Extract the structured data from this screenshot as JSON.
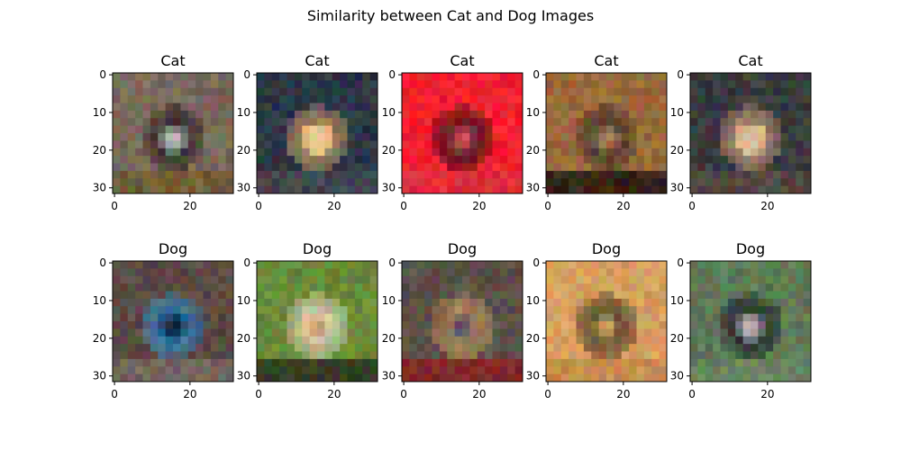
{
  "figure": {
    "suptitle": "Similarity between Cat and Dog Images"
  },
  "chart_data": [
    {
      "type": "image",
      "title": "Cat",
      "xlim": [
        -0.5,
        31.5
      ],
      "ylim": [
        31.5,
        -0.5
      ],
      "xticks": [
        0,
        20
      ],
      "yticks": [
        0,
        10,
        20,
        30
      ],
      "image_colors": {
        "background": "#7a6a5c",
        "accent": "#1e1c1c",
        "highlight": "#e8e0dc",
        "floor": "#6f5a2f"
      }
    },
    {
      "type": "image",
      "title": "Cat",
      "xlim": [
        -0.5,
        31.5
      ],
      "ylim": [
        31.5,
        -0.5
      ],
      "xticks": [
        0,
        20
      ],
      "yticks": [
        0,
        10,
        20,
        30
      ],
      "image_colors": {
        "background": "#2c3646",
        "accent": "#d9a56f",
        "highlight": "#f0d0a0",
        "floor": "#4a4a54"
      }
    },
    {
      "type": "image",
      "title": "Cat",
      "xlim": [
        -0.5,
        31.5
      ],
      "ylim": [
        31.5,
        -0.5
      ],
      "xticks": [
        0,
        20
      ],
      "yticks": [
        0,
        10,
        20,
        30
      ],
      "image_colors": {
        "background": "#f0202f",
        "accent": "#221616",
        "highlight": "#ff6070",
        "floor": "#e0303c"
      }
    },
    {
      "type": "image",
      "title": "Cat",
      "xlim": [
        -0.5,
        31.5
      ],
      "ylim": [
        31.5,
        -0.5
      ],
      "xticks": [
        0,
        20
      ],
      "yticks": [
        0,
        10,
        20,
        30
      ],
      "image_colors": {
        "background": "#9a6a3c",
        "accent": "#3a302a",
        "highlight": "#c89060",
        "floor": "#1e1410"
      }
    },
    {
      "type": "image",
      "title": "Cat",
      "xlim": [
        -0.5,
        31.5
      ],
      "ylim": [
        31.5,
        -0.5
      ],
      "xticks": [
        0,
        20
      ],
      "yticks": [
        0,
        10,
        20,
        30
      ],
      "image_colors": {
        "background": "#3a3c3e",
        "accent": "#d6aa82",
        "highlight": "#e8cca8",
        "floor": "#5a4a40"
      }
    },
    {
      "type": "image",
      "title": "Dog",
      "xlim": [
        -0.5,
        31.5
      ],
      "ylim": [
        31.5,
        -0.5
      ],
      "xticks": [
        0,
        20
      ],
      "yticks": [
        0,
        10,
        20,
        30
      ],
      "image_colors": {
        "background": "#5a4a44",
        "accent": "#2b8fcf",
        "highlight": "#101014",
        "floor": "#7a6a60"
      }
    },
    {
      "type": "image",
      "title": "Dog",
      "xlim": [
        -0.5,
        31.5
      ],
      "ylim": [
        31.5,
        -0.5
      ],
      "xticks": [
        0,
        20
      ],
      "yticks": [
        0,
        10,
        20,
        30
      ],
      "image_colors": {
        "background": "#6a8a3a",
        "accent": "#e8dccc",
        "highlight": "#c09060",
        "floor": "#2a2a20"
      }
    },
    {
      "type": "image",
      "title": "Dog",
      "xlim": [
        -0.5,
        31.5
      ],
      "ylim": [
        31.5,
        -0.5
      ],
      "xticks": [
        0,
        20
      ],
      "yticks": [
        0,
        10,
        20,
        30
      ],
      "image_colors": {
        "background": "#5a5048",
        "accent": "#c89a5a",
        "highlight": "#3c3c70",
        "floor": "#8a2020"
      }
    },
    {
      "type": "image",
      "title": "Dog",
      "xlim": [
        -0.5,
        31.5
      ],
      "ylim": [
        31.5,
        -0.5
      ],
      "xticks": [
        0,
        20
      ],
      "yticks": [
        0,
        10,
        20,
        30
      ],
      "image_colors": {
        "background": "#d8a060",
        "accent": "#302820",
        "highlight": "#e8b878",
        "floor": "#c48848"
      }
    },
    {
      "type": "image",
      "title": "Dog",
      "xlim": [
        -0.5,
        31.5
      ],
      "ylim": [
        31.5,
        -0.5
      ],
      "xticks": [
        0,
        20
      ],
      "yticks": [
        0,
        10,
        20,
        30
      ],
      "image_colors": {
        "background": "#5e7a58",
        "accent": "#14161e",
        "highlight": "#e0e0e8",
        "floor": "#6a8460"
      }
    }
  ]
}
